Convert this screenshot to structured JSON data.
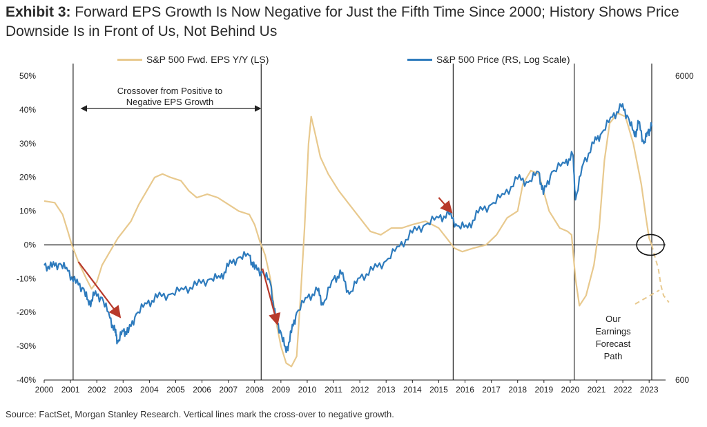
{
  "header": {
    "exhibit": "Exhibit 3:",
    "title": "Forward EPS Growth Is Now Negative for Just the Fifth Time Since 2000; History Shows Price Downside Is in Front of Us, Not Behind Us"
  },
  "footer": {
    "source": "Source: FactSet, Morgan Stanley Research. Vertical lines mark the cross-over to negative growth."
  },
  "colors": {
    "eps": "#e8c98e",
    "price": "#2e7bbd",
    "arrow": "#b83a2b",
    "axis": "#222222"
  },
  "chart_data": {
    "type": "line",
    "legend_position": "top",
    "grid": false,
    "x_ticks": [
      "2000",
      "2001",
      "2002",
      "2003",
      "2004",
      "2005",
      "2006",
      "2007",
      "2008",
      "2009",
      "2010",
      "2011",
      "2012",
      "2013",
      "2014",
      "2015",
      "2016",
      "2017",
      "2018",
      "2019",
      "2020",
      "2021",
      "2022",
      "2023"
    ],
    "left_axis": {
      "ylim": [
        -40,
        50
      ],
      "ticks": [
        "50%",
        "40%",
        "30%",
        "20%",
        "10%",
        "0%",
        "-10%",
        "-20%",
        "-30%",
        "-40%"
      ]
    },
    "right_axis": {
      "scale": "log",
      "ylim": [
        600,
        6000
      ],
      "ticks": [
        "6000",
        "600"
      ]
    },
    "series": [
      {
        "name": "S&P 500 Fwd. EPS Y/Y (LS)",
        "axis": "left",
        "points": [
          [
            2000.0,
            13
          ],
          [
            2000.4,
            12.5
          ],
          [
            2000.7,
            9
          ],
          [
            2000.9,
            4
          ],
          [
            2001.05,
            0
          ],
          [
            2001.3,
            -5
          ],
          [
            2001.6,
            -10
          ],
          [
            2001.8,
            -13
          ],
          [
            2002.0,
            -11
          ],
          [
            2002.2,
            -6
          ],
          [
            2002.5,
            -2
          ],
          [
            2002.8,
            2
          ],
          [
            2003.0,
            4
          ],
          [
            2003.3,
            7
          ],
          [
            2003.6,
            12
          ],
          [
            2003.9,
            16
          ],
          [
            2004.2,
            20
          ],
          [
            2004.5,
            21
          ],
          [
            2004.8,
            20
          ],
          [
            2005.2,
            19
          ],
          [
            2005.5,
            16
          ],
          [
            2005.8,
            14
          ],
          [
            2006.2,
            15
          ],
          [
            2006.6,
            14
          ],
          [
            2007.0,
            12
          ],
          [
            2007.4,
            10
          ],
          [
            2007.8,
            9
          ],
          [
            2008.0,
            6
          ],
          [
            2008.2,
            1
          ],
          [
            2008.4,
            -3
          ],
          [
            2008.6,
            -10
          ],
          [
            2008.8,
            -22
          ],
          [
            2009.0,
            -30
          ],
          [
            2009.2,
            -35
          ],
          [
            2009.4,
            -36
          ],
          [
            2009.6,
            -33
          ],
          [
            2009.75,
            -15
          ],
          [
            2009.9,
            5
          ],
          [
            2010.05,
            30
          ],
          [
            2010.15,
            38
          ],
          [
            2010.3,
            33
          ],
          [
            2010.5,
            26
          ],
          [
            2010.8,
            21
          ],
          [
            2011.2,
            16
          ],
          [
            2011.6,
            12
          ],
          [
            2012.0,
            8
          ],
          [
            2012.4,
            4
          ],
          [
            2012.8,
            3
          ],
          [
            2013.2,
            5
          ],
          [
            2013.6,
            5
          ],
          [
            2014.0,
            6
          ],
          [
            2014.5,
            7
          ],
          [
            2015.0,
            5
          ],
          [
            2015.3,
            2
          ],
          [
            2015.6,
            -1
          ],
          [
            2015.9,
            -2
          ],
          [
            2016.3,
            -1
          ],
          [
            2016.8,
            0
          ],
          [
            2017.2,
            3
          ],
          [
            2017.6,
            8
          ],
          [
            2018.0,
            10
          ],
          [
            2018.2,
            18
          ],
          [
            2018.5,
            22
          ],
          [
            2018.8,
            21
          ],
          [
            2019.2,
            10
          ],
          [
            2019.6,
            5
          ],
          [
            2019.9,
            4
          ],
          [
            2020.05,
            3
          ],
          [
            2020.2,
            -10
          ],
          [
            2020.35,
            -18
          ],
          [
            2020.6,
            -15
          ],
          [
            2020.9,
            -6
          ],
          [
            2021.1,
            5
          ],
          [
            2021.3,
            25
          ],
          [
            2021.5,
            36
          ],
          [
            2021.8,
            39
          ],
          [
            2022.1,
            38
          ],
          [
            2022.4,
            30
          ],
          [
            2022.7,
            18
          ],
          [
            2022.9,
            7
          ],
          [
            2023.0,
            2
          ],
          [
            2023.1,
            0
          ]
        ]
      },
      {
        "name": "S&P 500 Price (RS, Log Scale)",
        "axis": "right",
        "points": [
          [
            2000.0,
            1430
          ],
          [
            2000.3,
            1410
          ],
          [
            2000.6,
            1450
          ],
          [
            2000.9,
            1370
          ],
          [
            2001.2,
            1250
          ],
          [
            2001.5,
            1200
          ],
          [
            2001.7,
            1060
          ],
          [
            2001.9,
            1140
          ],
          [
            2002.2,
            1120
          ],
          [
            2002.5,
            960
          ],
          [
            2002.7,
            860
          ],
          [
            2002.8,
            800
          ],
          [
            2003.0,
            870
          ],
          [
            2003.2,
            860
          ],
          [
            2003.5,
            990
          ],
          [
            2003.9,
            1070
          ],
          [
            2004.3,
            1120
          ],
          [
            2004.8,
            1150
          ],
          [
            2005.3,
            1190
          ],
          [
            2005.8,
            1230
          ],
          [
            2006.3,
            1290
          ],
          [
            2006.7,
            1300
          ],
          [
            2007.0,
            1420
          ],
          [
            2007.4,
            1520
          ],
          [
            2007.8,
            1540
          ],
          [
            2008.0,
            1390
          ],
          [
            2008.3,
            1360
          ],
          [
            2008.6,
            1250
          ],
          [
            2008.8,
            950
          ],
          [
            2009.0,
            860
          ],
          [
            2009.2,
            740
          ],
          [
            2009.4,
            860
          ],
          [
            2009.6,
            1000
          ],
          [
            2010.0,
            1120
          ],
          [
            2010.4,
            1180
          ],
          [
            2010.6,
            1060
          ],
          [
            2011.0,
            1290
          ],
          [
            2011.3,
            1340
          ],
          [
            2011.6,
            1150
          ],
          [
            2012.0,
            1300
          ],
          [
            2012.5,
            1380
          ],
          [
            2013.0,
            1480
          ],
          [
            2013.5,
            1650
          ],
          [
            2014.0,
            1830
          ],
          [
            2014.5,
            1950
          ],
          [
            2015.0,
            2050
          ],
          [
            2015.4,
            2100
          ],
          [
            2015.7,
            1930
          ],
          [
            2016.1,
            1900
          ],
          [
            2016.5,
            2130
          ],
          [
            2017.0,
            2270
          ],
          [
            2017.5,
            2450
          ],
          [
            2018.0,
            2750
          ],
          [
            2018.4,
            2680
          ],
          [
            2018.8,
            2900
          ],
          [
            2018.98,
            2450
          ],
          [
            2019.3,
            2900
          ],
          [
            2019.8,
            3100
          ],
          [
            2020.1,
            3300
          ],
          [
            2020.2,
            2350
          ],
          [
            2020.5,
            3100
          ],
          [
            2020.9,
            3600
          ],
          [
            2021.2,
            3900
          ],
          [
            2021.6,
            4400
          ],
          [
            2021.95,
            4750
          ],
          [
            2022.2,
            4400
          ],
          [
            2022.45,
            3800
          ],
          [
            2022.6,
            4200
          ],
          [
            2022.8,
            3600
          ],
          [
            2022.95,
            3900
          ],
          [
            2023.1,
            4100
          ]
        ]
      }
    ],
    "forecast_path": {
      "points": [
        [
          2023.1,
          0
        ],
        [
          2023.2,
          -3
        ],
        [
          2023.35,
          -7
        ],
        [
          2023.45,
          -12
        ],
        [
          2023.55,
          -15
        ],
        [
          2023.65,
          -16
        ],
        [
          2023.75,
          -17
        ]
      ]
    }
  },
  "annotations": {
    "crossover_label_line1": "Crossover from Positive to",
    "crossover_label_line2": "Negative EPS Growth",
    "forecast_label": [
      "Our",
      "Earnings",
      "Forecast",
      "Path"
    ],
    "vertical_lines_years": [
      2001.1,
      2008.25,
      2015.55,
      2020.15,
      2023.1
    ],
    "red_arrows": [
      {
        "from": [
          2001.3,
          -5
        ],
        "to": [
          2002.85,
          -21
        ]
      },
      {
        "from": [
          2008.3,
          -7
        ],
        "to": [
          2008.85,
          -23
        ]
      },
      {
        "from": [
          2015.0,
          14
        ],
        "to": [
          2015.45,
          10
        ]
      }
    ]
  }
}
